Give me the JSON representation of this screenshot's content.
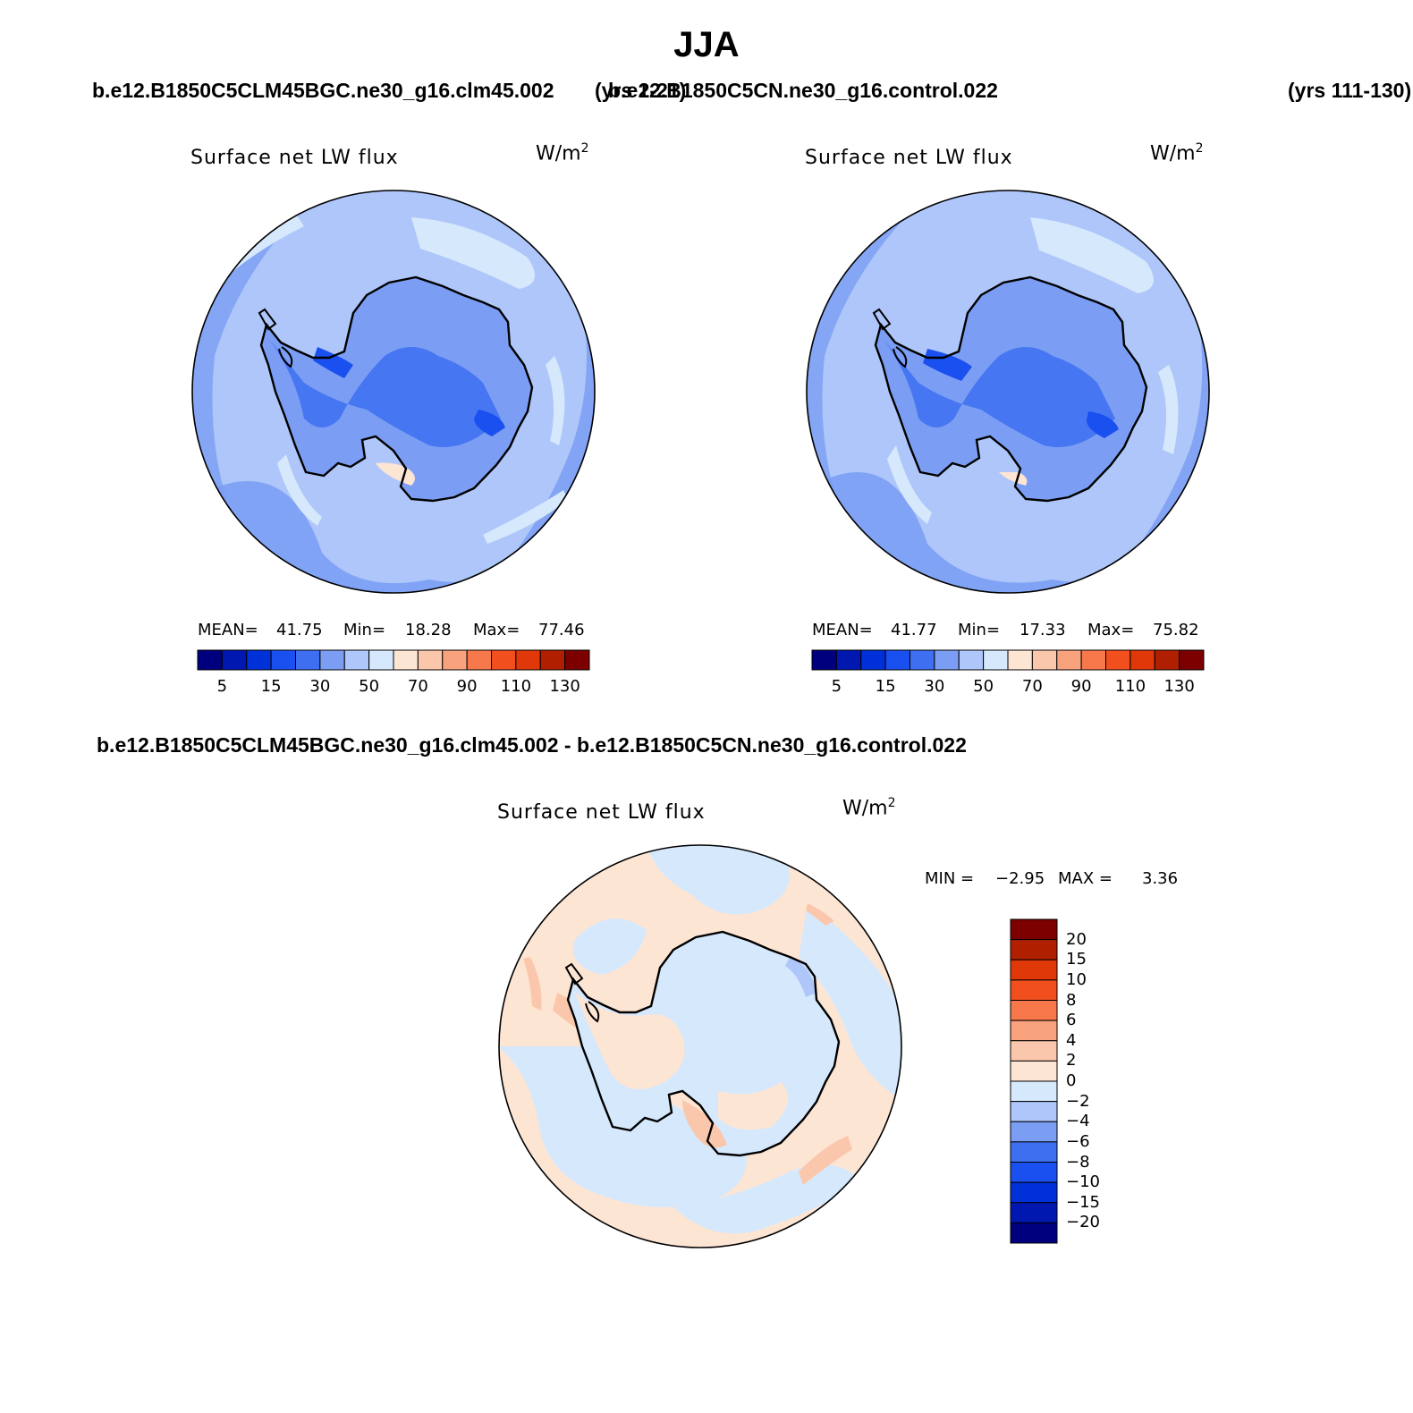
{
  "title": "JJA",
  "top_row": {
    "case_left": "b.e12.B1850C5CLM45BGC.ne30_g16.clm45.002",
    "years_left": "(yrs 2-21)",
    "case_right": "b.e12.B1850C5CN.ne30_g16.control.022",
    "years_right": "(yrs 111-130)"
  },
  "diff_title": "b.e12.B1850C5CLM45BGC.ne30_g16.clm45.002 - b.e12.B1850C5CN.ne30_g16.control.022",
  "panels": [
    {
      "title": "Surface net LW flux",
      "units": "W/m",
      "units_sup": "2",
      "mean_label": "MEAN=",
      "mean": "41.75",
      "min_label": "Min=",
      "min": "18.28",
      "max_label": "Max=",
      "max": "77.46"
    },
    {
      "title": "Surface net LW flux",
      "units": "W/m",
      "units_sup": "2",
      "mean_label": "MEAN=",
      "mean": "41.77",
      "min_label": "Min=",
      "min": "17.33",
      "max_label": "Max=",
      "max": "75.82"
    }
  ],
  "diff_panel": {
    "title": "Surface net LW flux",
    "units": "W/m",
    "units_sup": "2",
    "min_label": "MIN =",
    "min": "−2.95",
    "max_label": "MAX =",
    "max": "3.36"
  },
  "colorbar_h": {
    "colors": [
      "#00007f",
      "#0018b0",
      "#0030d8",
      "#1a4ff0",
      "#3d6ff0",
      "#7b9ef4",
      "#aec6f9",
      "#d6e8fc",
      "#fde5d4",
      "#fbc7ac",
      "#f9a27e",
      "#f7784a",
      "#f1501e",
      "#e03808",
      "#b02000",
      "#7c0000"
    ],
    "tick_labels": [
      "5",
      "15",
      "30",
      "50",
      "70",
      "90",
      "110",
      "130"
    ]
  },
  "colorbar_v": {
    "colors_top_to_bottom": [
      "#7c0000",
      "#b02000",
      "#e03808",
      "#f1501e",
      "#f7784a",
      "#f9a27e",
      "#fbc7ac",
      "#fde5d4",
      "#d6e8fc",
      "#aec6f9",
      "#7b9ef4",
      "#3d6ff0",
      "#1a4ff0",
      "#0030d8",
      "#0018b0",
      "#00007f"
    ],
    "labels": [
      "20",
      "15",
      "10",
      "8",
      "6",
      "4",
      "2",
      "0",
      "−2",
      "−4",
      "−6",
      "−8",
      "−10",
      "−15",
      "−20"
    ]
  },
  "colors": {
    "map_base": "#aec6f9",
    "map_mid": "#7b9ef4",
    "map_dark": "#3d6ff0",
    "map_light": "#d6e8fc",
    "map_warm": "#fde5d4",
    "diff_base": "#d6e8fc",
    "diff_warm": "#fde5d4",
    "diff_warmer": "#fbc7ac",
    "diff_cool": "#aec6f9"
  }
}
